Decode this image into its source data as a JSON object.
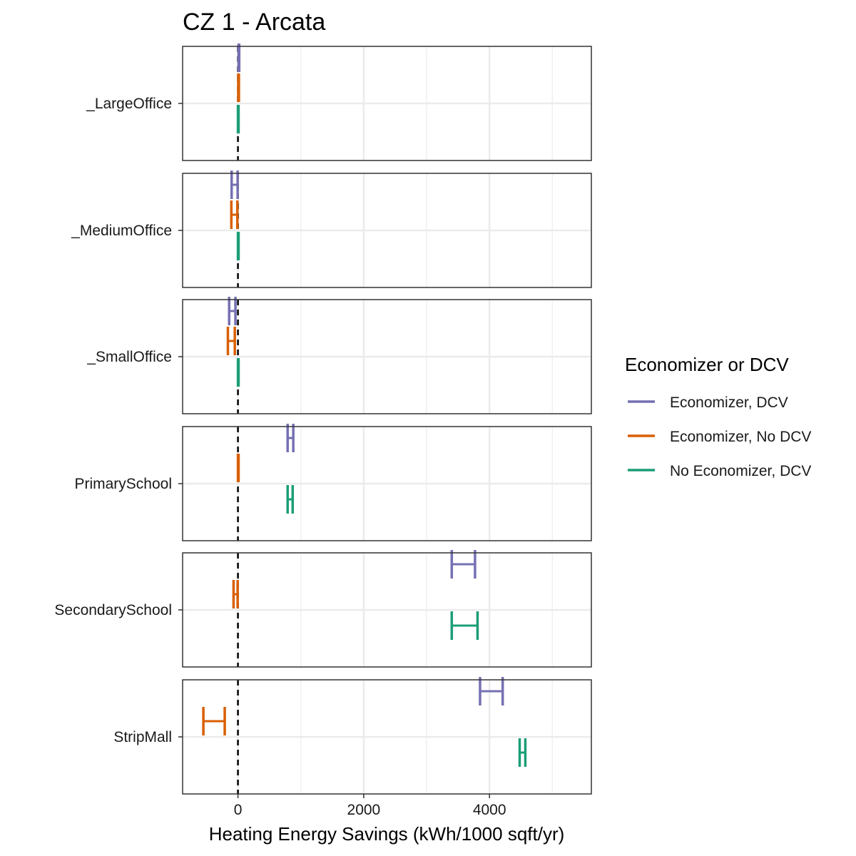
{
  "chart_data": {
    "type": "errorbar",
    "title": "CZ 1 - Arcata",
    "xlabel": "Heating Energy Savings (kWh/1000 sqft/yr)",
    "ylabel": "",
    "xlim": [
      -880,
      5620
    ],
    "x_ticks": [
      0,
      2000,
      4000
    ],
    "x_ticks_minor": [
      1000,
      3000,
      5000
    ],
    "reference_line": {
      "x": 0,
      "style": "dashed"
    },
    "grid": true,
    "facets": [
      "_LargeOffice",
      "_MediumOffice",
      "_SmallOffice",
      "PrimarySchool",
      "SecondarySchool",
      "StripMall"
    ],
    "legend": {
      "title": "Economizer or DCV",
      "position": "right",
      "entries": [
        {
          "name": "Economizer, DCV",
          "color": "#7570B3"
        },
        {
          "name": "Economizer, No DCV",
          "color": "#D95F02"
        },
        {
          "name": "No Economizer, DCV",
          "color": "#1B9E77"
        }
      ]
    },
    "series": [
      {
        "name": "Economizer, DCV",
        "color": "#7570B3",
        "points": [
          {
            "facet": "_LargeOffice",
            "low": 10,
            "high": 20
          },
          {
            "facet": "_MediumOffice",
            "low": -100,
            "high": -5
          },
          {
            "facet": "_SmallOffice",
            "low": -140,
            "high": -40
          },
          {
            "facet": "PrimarySchool",
            "low": 790,
            "high": 880
          },
          {
            "facet": "SecondarySchool",
            "low": 3400,
            "high": 3770
          },
          {
            "facet": "StripMall",
            "low": 3850,
            "high": 4210
          }
        ]
      },
      {
        "name": "Economizer, No DCV",
        "color": "#D95F02",
        "points": [
          {
            "facet": "_LargeOffice",
            "low": 5,
            "high": 15
          },
          {
            "facet": "_MediumOffice",
            "low": -105,
            "high": -10
          },
          {
            "facet": "_SmallOffice",
            "low": -160,
            "high": -50
          },
          {
            "facet": "PrimarySchool",
            "low": 0,
            "high": 10
          },
          {
            "facet": "SecondarySchool",
            "low": -70,
            "high": -5
          },
          {
            "facet": "StripMall",
            "low": -550,
            "high": -210
          }
        ]
      },
      {
        "name": "No Economizer, DCV",
        "color": "#1B9E77",
        "points": [
          {
            "facet": "_LargeOffice",
            "low": 0,
            "high": 10
          },
          {
            "facet": "_MediumOffice",
            "low": 0,
            "high": 10
          },
          {
            "facet": "_SmallOffice",
            "low": 0,
            "high": 10
          },
          {
            "facet": "PrimarySchool",
            "low": 790,
            "high": 870
          },
          {
            "facet": "SecondarySchool",
            "low": 3400,
            "high": 3810
          },
          {
            "facet": "StripMall",
            "low": 4480,
            "high": 4570
          }
        ]
      }
    ]
  }
}
